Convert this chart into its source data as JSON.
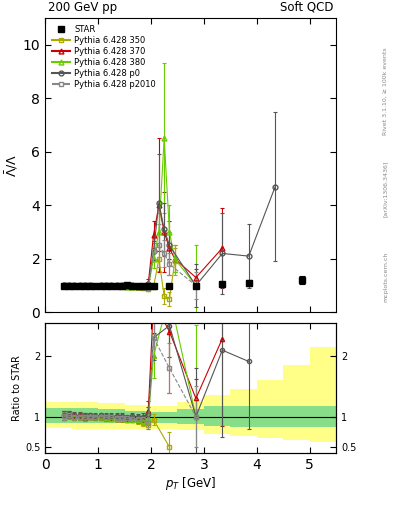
{
  "title_left": "200 GeV pp",
  "title_right": "Soft QCD",
  "ylabel_main": "$\\bar{\\Lambda}/\\Lambda$",
  "ylabel_ratio": "Ratio to STAR",
  "xlabel": "$p_T$ [GeV]",
  "ylim_main": [
    0,
    11
  ],
  "ylim_ratio": [
    0.4,
    2.55
  ],
  "xlim": [
    0,
    5.5
  ],
  "rivet_text": "Rivet 3.1.10, ≥ 100k events",
  "arxiv_text": "[arXiv:1306.3436]",
  "mcplots_text": "mcplots.cern.ch",
  "star_x": [
    0.35,
    0.45,
    0.55,
    0.65,
    0.75,
    0.85,
    0.95,
    1.05,
    1.15,
    1.25,
    1.35,
    1.45,
    1.55,
    1.65,
    1.75,
    1.85,
    1.95,
    2.05,
    2.35,
    2.85,
    3.35,
    3.85,
    4.85
  ],
  "star_y": [
    1.0,
    0.98,
    0.99,
    0.99,
    1.0,
    0.99,
    0.99,
    0.99,
    1.0,
    1.0,
    1.0,
    1.0,
    1.01,
    1.0,
    1.0,
    1.0,
    1.0,
    1.0,
    1.0,
    1.0,
    1.05,
    1.1,
    1.2
  ],
  "star_yerr": [
    0.05,
    0.04,
    0.04,
    0.04,
    0.04,
    0.03,
    0.03,
    0.03,
    0.03,
    0.03,
    0.03,
    0.03,
    0.03,
    0.03,
    0.03,
    0.03,
    0.04,
    0.05,
    0.06,
    0.07,
    0.08,
    0.1,
    0.15
  ],
  "py350_x": [
    0.35,
    0.45,
    0.55,
    0.65,
    0.75,
    0.85,
    0.95,
    1.05,
    1.15,
    1.25,
    1.35,
    1.45,
    1.55,
    1.65,
    1.75,
    1.85,
    1.95,
    2.05,
    2.15,
    2.25,
    2.35,
    2.45
  ],
  "py350_y": [
    1.02,
    1.0,
    0.99,
    0.99,
    0.99,
    0.99,
    0.98,
    0.97,
    0.97,
    0.97,
    0.97,
    0.96,
    0.96,
    0.95,
    0.93,
    0.9,
    0.87,
    0.95,
    2.0,
    0.6,
    0.5,
    1.9
  ],
  "py350_yerr": [
    0.05,
    0.04,
    0.04,
    0.04,
    0.04,
    0.03,
    0.03,
    0.03,
    0.03,
    0.03,
    0.03,
    0.03,
    0.03,
    0.03,
    0.04,
    0.05,
    0.06,
    0.08,
    0.45,
    0.3,
    0.25,
    0.5
  ],
  "py370_x": [
    0.35,
    0.45,
    0.55,
    0.65,
    0.75,
    0.85,
    0.95,
    1.05,
    1.15,
    1.25,
    1.35,
    1.45,
    1.55,
    1.65,
    1.75,
    1.85,
    1.95,
    2.05,
    2.15,
    2.25,
    2.35,
    2.45,
    2.85,
    3.35
  ],
  "py370_y": [
    1.02,
    1.01,
    1.0,
    1.0,
    1.0,
    0.99,
    0.98,
    0.98,
    0.98,
    0.98,
    0.97,
    0.97,
    0.97,
    0.97,
    0.95,
    0.95,
    1.1,
    2.9,
    4.0,
    3.0,
    2.4,
    2.0,
    1.3,
    2.4
  ],
  "py370_yerr": [
    0.05,
    0.04,
    0.04,
    0.04,
    0.04,
    0.03,
    0.03,
    0.03,
    0.03,
    0.03,
    0.03,
    0.03,
    0.03,
    0.03,
    0.04,
    0.05,
    0.15,
    0.5,
    2.5,
    1.5,
    1.0,
    0.5,
    0.3,
    1.5
  ],
  "py380_x": [
    0.35,
    0.45,
    0.55,
    0.65,
    0.75,
    0.85,
    0.95,
    1.05,
    1.15,
    1.25,
    1.35,
    1.45,
    1.55,
    1.65,
    1.75,
    1.85,
    1.95,
    2.05,
    2.15,
    2.25,
    2.35,
    2.45,
    2.85
  ],
  "py380_y": [
    1.01,
    1.0,
    0.99,
    0.99,
    0.99,
    0.99,
    0.98,
    0.98,
    0.98,
    0.97,
    0.97,
    0.97,
    0.96,
    0.95,
    0.94,
    0.93,
    0.98,
    2.0,
    3.0,
    6.5,
    3.0,
    2.0,
    1.0
  ],
  "py380_yerr": [
    0.05,
    0.04,
    0.04,
    0.04,
    0.04,
    0.03,
    0.03,
    0.03,
    0.03,
    0.03,
    0.03,
    0.03,
    0.03,
    0.03,
    0.04,
    0.05,
    0.1,
    0.35,
    0.7,
    2.8,
    1.0,
    0.5,
    1.5
  ],
  "pyp0_x": [
    0.35,
    0.45,
    0.55,
    0.65,
    0.75,
    0.85,
    0.95,
    1.05,
    1.15,
    1.25,
    1.35,
    1.45,
    1.55,
    1.65,
    1.75,
    1.85,
    1.95,
    2.05,
    2.15,
    2.25,
    2.35,
    2.85,
    3.35,
    3.85,
    4.35
  ],
  "pyp0_y": [
    1.02,
    1.02,
    1.01,
    1.01,
    1.01,
    1.01,
    1.0,
    1.01,
    1.01,
    1.01,
    1.01,
    1.01,
    1.0,
    1.01,
    1.0,
    1.0,
    1.05,
    2.3,
    4.1,
    3.1,
    2.5,
    1.0,
    2.2,
    2.1,
    4.7
  ],
  "pyp0_yerr": [
    0.05,
    0.04,
    0.04,
    0.04,
    0.04,
    0.03,
    0.03,
    0.03,
    0.03,
    0.03,
    0.03,
    0.03,
    0.03,
    0.03,
    0.04,
    0.05,
    0.1,
    0.35,
    1.8,
    1.0,
    0.5,
    0.8,
    1.5,
    1.2,
    2.8
  ],
  "pyp2010_x": [
    0.35,
    0.45,
    0.55,
    0.65,
    0.75,
    0.85,
    0.95,
    1.05,
    1.15,
    1.25,
    1.35,
    1.45,
    1.55,
    1.65,
    1.75,
    1.85,
    1.95,
    2.05,
    2.15,
    2.25,
    2.35,
    2.85
  ],
  "pyp2010_y": [
    1.01,
    1.0,
    0.99,
    0.99,
    0.99,
    0.99,
    0.99,
    0.99,
    0.99,
    0.99,
    0.98,
    0.98,
    0.98,
    0.97,
    0.96,
    0.96,
    0.9,
    2.3,
    2.5,
    2.2,
    1.8,
    1.0
  ],
  "pyp2010_yerr": [
    0.05,
    0.04,
    0.04,
    0.04,
    0.04,
    0.03,
    0.03,
    0.03,
    0.03,
    0.03,
    0.03,
    0.03,
    0.03,
    0.03,
    0.04,
    0.05,
    0.1,
    0.3,
    0.8,
    0.5,
    0.4,
    0.5
  ],
  "color_star": "#000000",
  "color_350": "#aaaa00",
  "color_370": "#cc0000",
  "color_380": "#66cc00",
  "color_p0": "#555555",
  "color_p2010": "#888888",
  "band_edges": [
    0.0,
    0.5,
    1.0,
    1.5,
    2.0,
    2.5,
    3.0,
    3.5,
    4.0,
    4.5,
    5.0,
    5.5
  ],
  "band_yellow_lo": [
    0.82,
    0.8,
    0.8,
    0.8,
    0.8,
    0.78,
    0.72,
    0.68,
    0.65,
    0.62,
    0.58
  ],
  "band_yellow_hi": [
    1.25,
    1.25,
    1.23,
    1.2,
    1.18,
    1.25,
    1.35,
    1.45,
    1.6,
    1.85,
    2.15
  ],
  "band_green_lo": [
    0.9,
    0.9,
    0.9,
    0.9,
    0.9,
    0.88,
    0.85,
    0.83,
    0.83,
    0.83,
    0.83
  ],
  "band_green_hi": [
    1.15,
    1.15,
    1.13,
    1.1,
    1.08,
    1.12,
    1.18,
    1.18,
    1.18,
    1.18,
    1.18
  ]
}
